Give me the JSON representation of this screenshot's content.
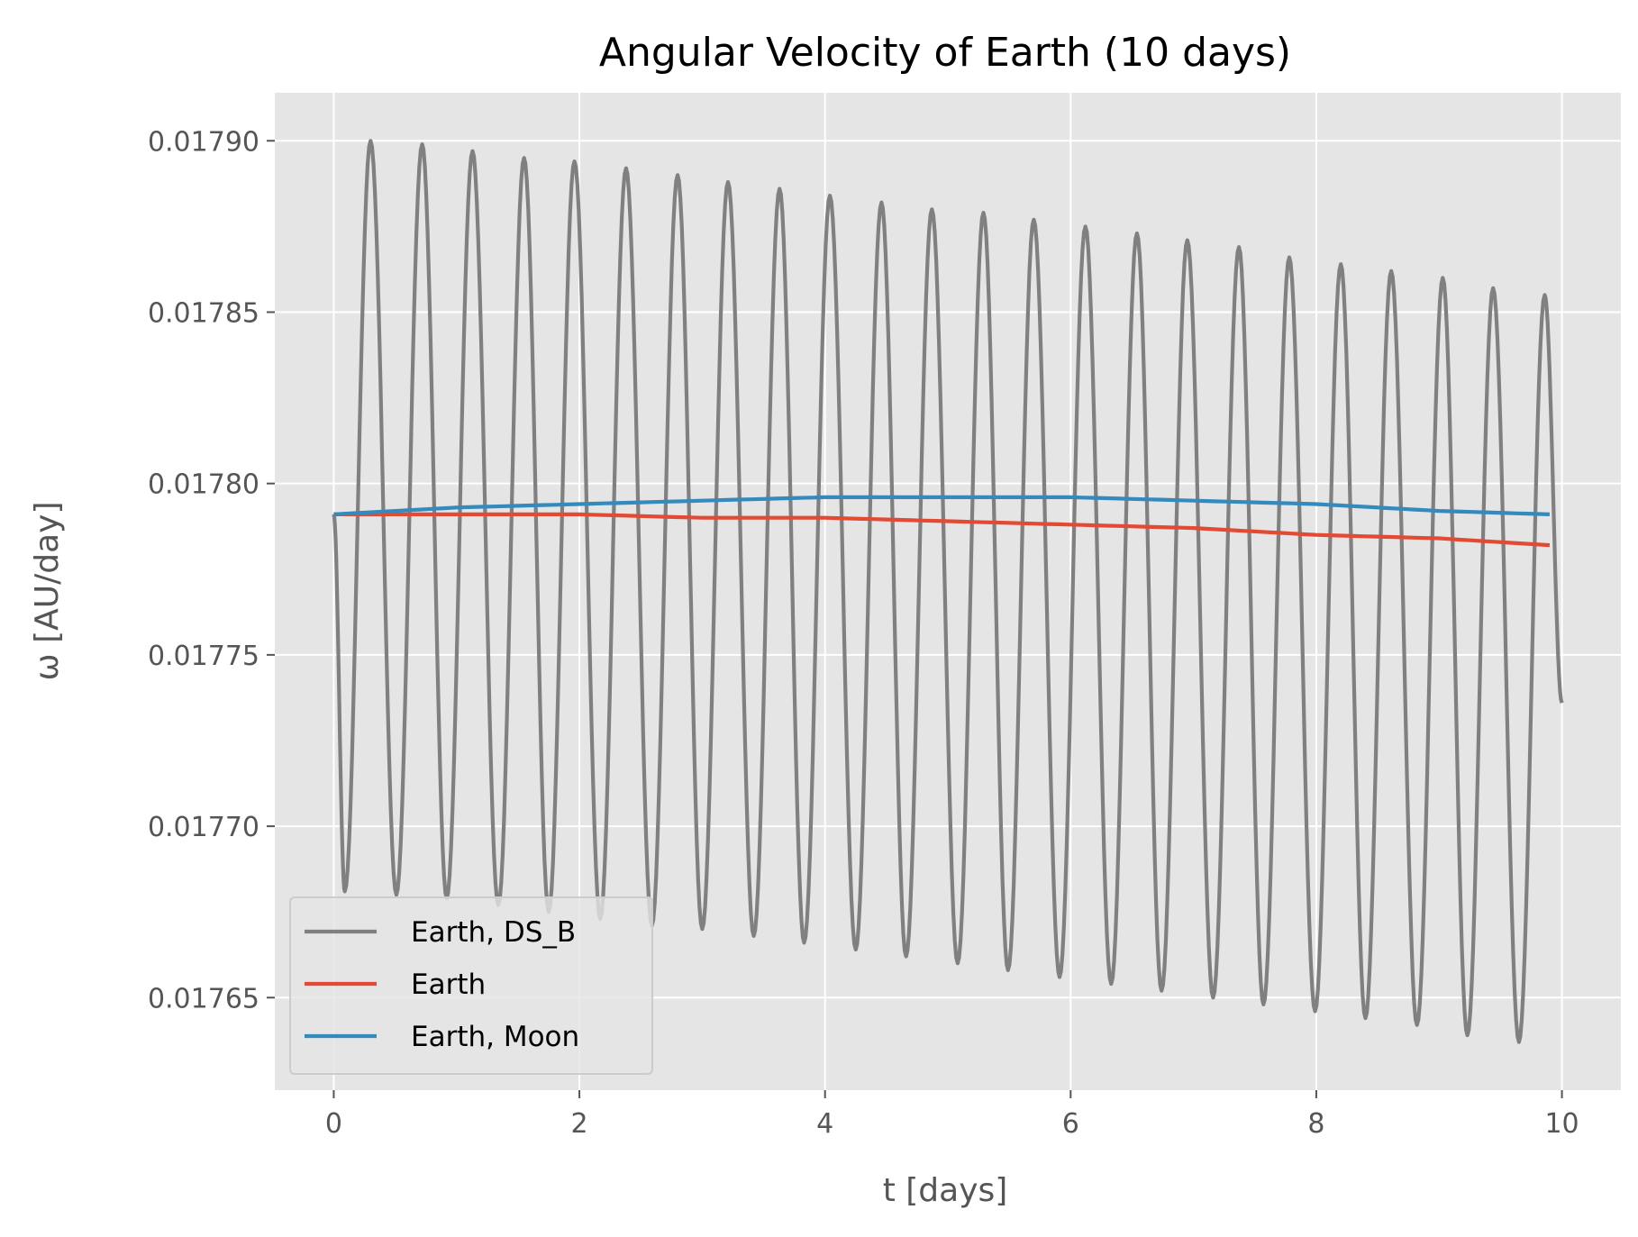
{
  "chart_data": {
    "type": "line",
    "title": "Angular Velocity of Earth (10 days)",
    "xlabel": "t [days]",
    "ylabel": "ω [AU/day]",
    "xlim": [
      -0.48,
      10.48
    ],
    "ylim": [
      0.017623,
      0.017914
    ],
    "xticks": [
      0,
      2,
      4,
      6,
      8,
      10
    ],
    "xtick_labels": [
      "0",
      "2",
      "4",
      "6",
      "8",
      "10"
    ],
    "yticks": [
      0.01765,
      0.0177,
      0.01775,
      0.0178,
      0.01785,
      0.0179
    ],
    "ytick_labels": [
      "0.01765",
      "0.01770",
      "0.01775",
      "0.01780",
      "0.01785",
      "0.01790"
    ],
    "grid": true,
    "legend_position": "lower-left",
    "background": "#e5e5e5",
    "series": [
      {
        "name": "Earth, DS_B",
        "color": "#808080",
        "style": "oscillating",
        "x_range": [
          0,
          10
        ],
        "baseline": 0.017791,
        "oscillation_period_days": 0.414,
        "x": [
          0.3,
          0.72,
          1.13,
          1.55,
          1.96,
          2.38,
          2.8,
          3.21,
          3.63,
          4.04,
          4.46,
          4.87,
          5.29,
          5.7,
          6.12,
          6.54,
          6.95,
          7.37,
          7.78,
          8.2,
          8.61,
          9.03,
          9.44,
          9.86,
          0.09,
          0.51,
          0.92,
          1.34,
          1.75,
          2.17,
          2.59,
          3.0,
          3.42,
          3.83,
          4.25,
          4.66,
          5.08,
          5.49,
          5.91,
          6.33,
          6.74,
          7.16,
          7.57,
          7.99,
          8.4,
          8.82,
          9.23,
          9.65
        ],
        "peaks": [
          0.0179,
          0.017899,
          0.017897,
          0.017895,
          0.017894,
          0.017892,
          0.01789,
          0.017888,
          0.017886,
          0.017884,
          0.017882,
          0.01788,
          0.017879,
          0.017877,
          0.017875,
          0.017873,
          0.017871,
          0.017869,
          0.017866,
          0.017864,
          0.017862,
          0.01786,
          0.017857,
          0.017855
        ],
        "troughs": [
          0.017681,
          0.01768,
          0.017679,
          0.017677,
          0.017675,
          0.017673,
          0.017671,
          0.01767,
          0.017668,
          0.017666,
          0.017664,
          0.017662,
          0.01766,
          0.017658,
          0.017656,
          0.017654,
          0.017652,
          0.01765,
          0.017648,
          0.017646,
          0.017644,
          0.017642,
          0.017639,
          0.017637
        ],
        "end_value": 0.017736
      },
      {
        "name": "Earth",
        "color": "#e24a33",
        "x": [
          0,
          1,
          2,
          3,
          4,
          5,
          6,
          7,
          8,
          9,
          9.9
        ],
        "y": [
          0.017791,
          0.017791,
          0.017791,
          0.01779,
          0.01779,
          0.017789,
          0.017788,
          0.017787,
          0.017785,
          0.017784,
          0.017782
        ]
      },
      {
        "name": "Earth, Moon",
        "color": "#348abd",
        "x": [
          0,
          1,
          2,
          3,
          4,
          5,
          6,
          7,
          8,
          9,
          9.9
        ],
        "y": [
          0.017791,
          0.017793,
          0.017794,
          0.017795,
          0.017796,
          0.017796,
          0.017796,
          0.017795,
          0.017794,
          0.017792,
          0.017791
        ]
      }
    ]
  }
}
